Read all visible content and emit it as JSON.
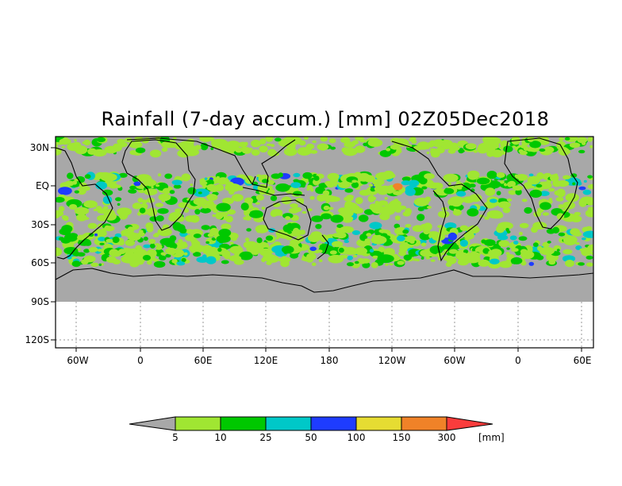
{
  "title": "Rainfall (7-day accum.) [mm] 02Z05Dec2018",
  "map": {
    "y_labels": [
      "30N",
      "EQ",
      "30S",
      "60S",
      "90S",
      "120S"
    ],
    "x_labels": [
      "60W",
      "0",
      "60E",
      "120E",
      "180",
      "120W",
      "60W",
      "0",
      "60E"
    ],
    "data_fill_color": "#a8a8a8",
    "grid": "dotted"
  },
  "legend": {
    "unit": "[mm]",
    "levels": [
      "5",
      "10",
      "25",
      "50",
      "100",
      "150",
      "300"
    ],
    "colors": [
      "#a8a8a8",
      "#a0e632",
      "#00c800",
      "#00c8c8",
      "#1e3cff",
      "#e6dc32",
      "#f08228",
      "#fa3c3c"
    ]
  }
}
